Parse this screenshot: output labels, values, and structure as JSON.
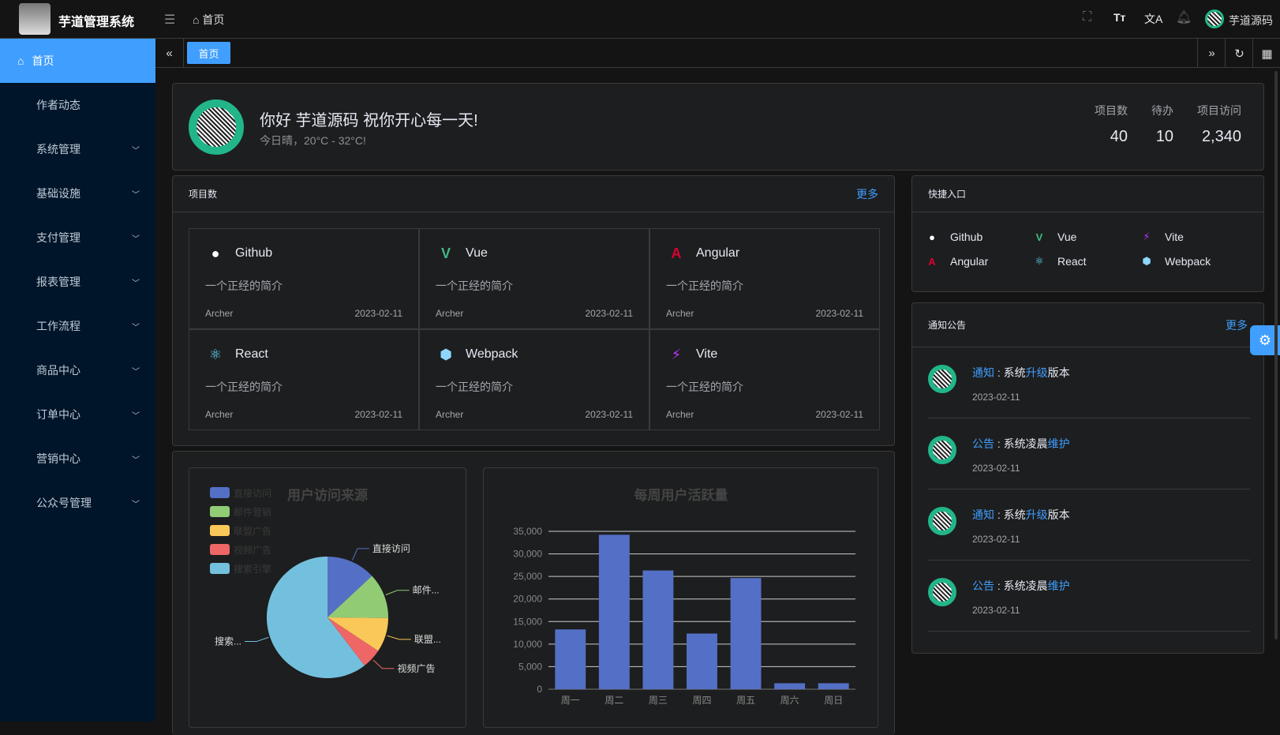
{
  "header": {
    "app_name": "芋道管理系统",
    "breadcrumb": "首页",
    "user": "芋道源码",
    "icons": [
      "fullscreen-icon",
      "font-size-icon",
      "translate-icon",
      "bell-icon"
    ]
  },
  "sidebar": {
    "items": [
      {
        "label": "首页",
        "active": true
      },
      {
        "label": "作者动态"
      },
      {
        "label": "系统管理"
      },
      {
        "label": "基础设施"
      },
      {
        "label": "支付管理"
      },
      {
        "label": "报表管理"
      },
      {
        "label": "工作流程"
      },
      {
        "label": "商品中心"
      },
      {
        "label": "订单中心"
      },
      {
        "label": "营销中心"
      },
      {
        "label": "公众号管理"
      }
    ]
  },
  "tabs": [
    {
      "label": "首页"
    }
  ],
  "welcome": {
    "greeting": "你好 芋道源码 祝你开心每一天!",
    "weather": "今日晴，20°C - 32°C!",
    "stats": [
      {
        "label": "项目数",
        "value": "40"
      },
      {
        "label": "待办",
        "value": "10"
      },
      {
        "label": "项目访问",
        "value": "2,340"
      }
    ]
  },
  "projects": {
    "title": "项目数",
    "more": "更多",
    "items": [
      {
        "name": "Github",
        "desc": "一个正经的简介",
        "author": "Archer",
        "date": "2023-02-11",
        "icon": "github-icon",
        "color": "#ffffff"
      },
      {
        "name": "Vue",
        "desc": "一个正经的简介",
        "author": "Archer",
        "date": "2023-02-11",
        "icon": "vue-icon",
        "color": "#42b883"
      },
      {
        "name": "Angular",
        "desc": "一个正经的简介",
        "author": "Archer",
        "date": "2023-02-11",
        "icon": "angular-icon",
        "color": "#dd0031"
      },
      {
        "name": "React",
        "desc": "一个正经的简介",
        "author": "Archer",
        "date": "2023-02-11",
        "icon": "react-icon",
        "color": "#61dafb"
      },
      {
        "name": "Webpack",
        "desc": "一个正经的简介",
        "author": "Archer",
        "date": "2023-02-11",
        "icon": "webpack-icon",
        "color": "#8ed6fb"
      },
      {
        "name": "Vite",
        "desc": "一个正经的简介",
        "author": "Archer",
        "date": "2023-02-11",
        "icon": "vite-icon",
        "color": "#bd34fe"
      }
    ]
  },
  "shortcuts": {
    "title": "快捷入口",
    "items": [
      {
        "name": "Github",
        "icon": "github-icon",
        "color": "#ffffff"
      },
      {
        "name": "Vue",
        "icon": "vue-icon",
        "color": "#42b883"
      },
      {
        "name": "Vite",
        "icon": "vite-icon",
        "color": "#bd34fe"
      },
      {
        "name": "Angular",
        "icon": "angular-icon",
        "color": "#dd0031"
      },
      {
        "name": "React",
        "icon": "react-icon",
        "color": "#61dafb"
      },
      {
        "name": "Webpack",
        "icon": "webpack-icon",
        "color": "#8ed6fb"
      }
    ]
  },
  "notices": {
    "title": "通知公告",
    "more": "更多",
    "items": [
      {
        "type": "通知",
        "pre": "系统",
        "hl": "升级",
        "post": "版本",
        "date": "2023-02-11"
      },
      {
        "type": "公告",
        "pre": "系统凌晨",
        "hl": "维护",
        "post": "",
        "date": "2023-02-11"
      },
      {
        "type": "通知",
        "pre": "系统",
        "hl": "升级",
        "post": "版本",
        "date": "2023-02-11"
      },
      {
        "type": "公告",
        "pre": "系统凌晨",
        "hl": "维护",
        "post": "",
        "date": "2023-02-11"
      }
    ]
  },
  "chart_data": [
    {
      "type": "pie",
      "title": "用户访问来源",
      "legend_position": "top-left",
      "categories": [
        "直接访问",
        "邮件营销",
        "联盟广告",
        "视频广告",
        "搜索引擎"
      ],
      "outer_labels": [
        "直接访问",
        "邮件...",
        "联盟...",
        "视频广告",
        "搜索..."
      ],
      "values": [
        335,
        310,
        234,
        135,
        1548
      ],
      "colors": [
        "#5470c6",
        "#91cc75",
        "#fac858",
        "#ee6666",
        "#73c0de"
      ]
    },
    {
      "type": "bar",
      "title": "每周用户活跃量",
      "categories": [
        "周一",
        "周二",
        "周三",
        "周四",
        "周五",
        "周六",
        "周日"
      ],
      "values": [
        13253,
        34235,
        26321,
        12340,
        24643,
        1322,
        1324
      ],
      "ylim": [
        0,
        35000
      ],
      "yticks": [
        "0",
        "5,000",
        "10,000",
        "15,000",
        "20,000",
        "25,000",
        "30,000",
        "35,000"
      ],
      "grid": true,
      "color": "#5470c6"
    }
  ]
}
